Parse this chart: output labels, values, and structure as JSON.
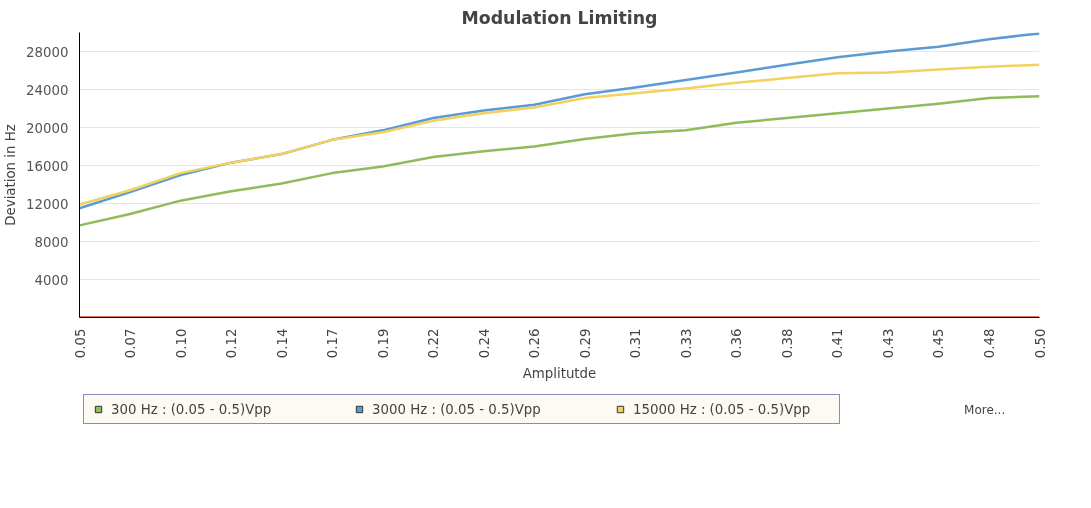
{
  "chart_data": {
    "type": "line",
    "title": "Modulation Limiting",
    "xlabel": "Amplitutde",
    "ylabel": "Deviation in Hz",
    "categories": [
      "0.05",
      "0.07",
      "0.10",
      "0.12",
      "0.14",
      "0.17",
      "0.19",
      "0.22",
      "0.24",
      "0.26",
      "0.29",
      "0.31",
      "0.33",
      "0.36",
      "0.38",
      "0.41",
      "0.43",
      "0.45",
      "0.48",
      "0.50"
    ],
    "series": [
      {
        "name": "300 Hz : (0.05 - 0.5)Vpp",
        "color": "#8fbc5a",
        "values": [
          9700,
          10900,
          12300,
          13300,
          14100,
          15200,
          15900,
          16900,
          17500,
          18000,
          18800,
          19400,
          19700,
          20500,
          21000,
          21500,
          22000,
          22500,
          23100,
          23300
        ]
      },
      {
        "name": "3000 Hz : (0.05 - 0.5)Vpp",
        "color": "#5b9bd5",
        "values": [
          11500,
          13200,
          15000,
          16300,
          17200,
          18700,
          19700,
          21000,
          21800,
          22400,
          23500,
          24200,
          25000,
          25800,
          26600,
          27400,
          28000,
          28500,
          29300,
          29900
        ]
      },
      {
        "name": "15000 Hz : (0.05 - 0.5)Vpp",
        "color": "#f2d15c",
        "values": [
          11900,
          13400,
          15200,
          16300,
          17200,
          18700,
          19500,
          20700,
          21500,
          22100,
          23100,
          23600,
          24100,
          24700,
          25200,
          25700,
          25800,
          26100,
          26400,
          26600
        ]
      },
      {
        "color": "#e2522b",
        "values": [
          0,
          0,
          0,
          0,
          0,
          0,
          0,
          0,
          0,
          0,
          0,
          0,
          0,
          0,
          0,
          0,
          0,
          0,
          0,
          0
        ]
      }
    ],
    "ylim": [
      0,
      30000
    ],
    "yticks": [
      4000,
      8000,
      12000,
      16000,
      20000,
      24000,
      28000
    ],
    "grid": "y",
    "legend": "bottom",
    "annotations": [
      "More..."
    ]
  }
}
